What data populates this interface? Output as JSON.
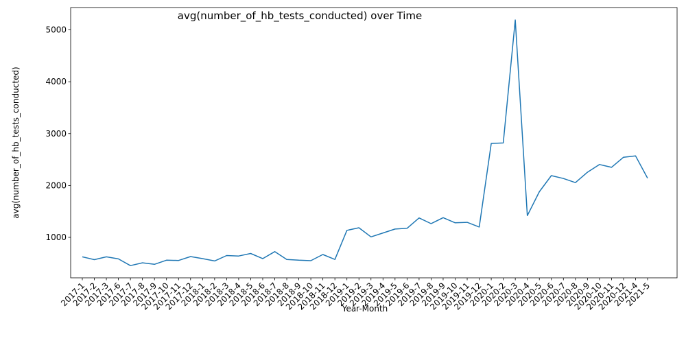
{
  "chart_data": {
    "type": "line",
    "title": "avg(number_of_hb_tests_conducted) over Time",
    "xlabel": "Year-Month",
    "ylabel": "avg(number_of_hb_tests_conducted)",
    "ylim": [
      220,
      5430
    ],
    "yticks": [
      1000,
      2000,
      3000,
      4000,
      5000
    ],
    "grid": false,
    "legend": "none",
    "line_color": "#1f77b4",
    "categories": [
      "2017-1",
      "2017-2",
      "2017-3",
      "2017-6",
      "2017-7",
      "2017-8",
      "2017-9",
      "2017-10",
      "2017-11",
      "2017-12",
      "2018-1",
      "2018-2",
      "2018-3",
      "2018-4",
      "2018-5",
      "2018-6",
      "2018-7",
      "2018-8",
      "2018-9",
      "2018-10",
      "2018-11",
      "2018-12",
      "2019-1",
      "2019-2",
      "2019-3",
      "2019-4",
      "2019-5",
      "2019-6",
      "2019-7",
      "2019-8",
      "2019-9",
      "2019-10",
      "2019-11",
      "2019-12",
      "2020-1",
      "2020-2",
      "2020-3",
      "2020-4",
      "2020-5",
      "2020-6",
      "2020-7",
      "2020-8",
      "2020-9",
      "2020-10",
      "2020-11",
      "2020-12",
      "2021-4",
      "2021-5"
    ],
    "series": [
      {
        "values": [
          625,
          570,
          625,
          585,
          455,
          510,
          480,
          560,
          555,
          630,
          590,
          545,
          650,
          640,
          690,
          590,
          725,
          575,
          560,
          550,
          670,
          575,
          1135,
          1185,
          1010,
          1085,
          1160,
          1175,
          1375,
          1265,
          1380,
          1280,
          1290,
          1200,
          2810,
          2820,
          5190,
          1420,
          1880,
          2190,
          2135,
          2055,
          2255,
          2405,
          2350,
          2545,
          2570,
          2140
        ]
      }
    ]
  }
}
